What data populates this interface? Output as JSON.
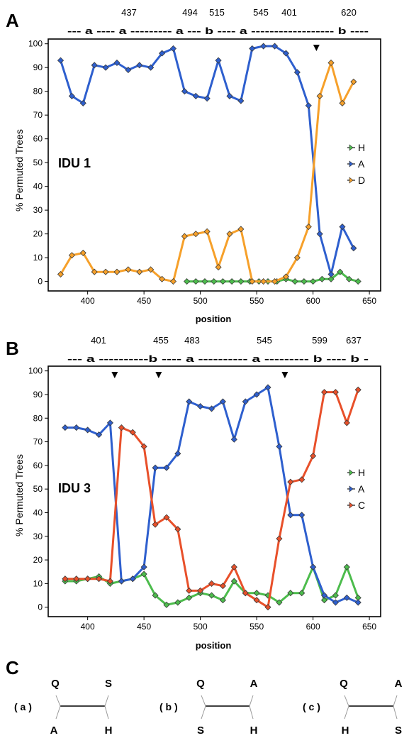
{
  "panels": [
    {
      "letter": "A",
      "breakpoint_labels": [
        "401",
        "437",
        "494",
        "515",
        "545",
        "620"
      ],
      "region_line": "--- a ---- a --------- a --- b ---- a ------------------ b ----",
      "ylabel": "% Permuted Trees",
      "xlabel": "position",
      "plot_label": "IDU 1",
      "arrowheads_x": [
        603
      ]
    },
    {
      "letter": "B",
      "breakpoint_labels": [
        "401",
        "455",
        "483",
        "545",
        "599",
        "637"
      ],
      "region_line": "--- a ----------b ---- a ---------- a --------- b ---- b -",
      "ylabel": "% Permuted Trees",
      "xlabel": "position",
      "plot_label": "IDU 3",
      "arrowheads_x": [
        424,
        463,
        575
      ]
    }
  ],
  "chart_data": [
    {
      "type": "line",
      "xlim": [
        365,
        660
      ],
      "ylim": [
        -4,
        102
      ],
      "x_ticks": [
        400,
        450,
        500,
        550,
        600,
        650
      ],
      "y_ticks": [
        0,
        10,
        20,
        30,
        40,
        50,
        60,
        70,
        80,
        90,
        100
      ],
      "xlabel": "position",
      "ylabel": "% Permuted Trees",
      "legend_position": "right",
      "series": [
        {
          "name": "H",
          "color": "#4cbc4c",
          "points": [
            [
              488,
              0
            ],
            [
              496,
              0
            ],
            [
              504,
              0
            ],
            [
              512,
              0
            ],
            [
              520,
              0
            ],
            [
              528,
              0
            ],
            [
              536,
              0
            ],
            [
              544,
              0
            ],
            [
              552,
              0
            ],
            [
              560,
              0
            ],
            [
              568,
              0
            ],
            [
              576,
              1
            ],
            [
              584,
              0
            ],
            [
              592,
              0
            ],
            [
              600,
              0
            ],
            [
              608,
              1
            ],
            [
              616,
              1
            ],
            [
              624,
              4
            ],
            [
              632,
              1
            ],
            [
              640,
              0
            ]
          ]
        },
        {
          "name": "A",
          "color": "#2e5fce",
          "points": [
            [
              376,
              93
            ],
            [
              386,
              78
            ],
            [
              396,
              75
            ],
            [
              406,
              91
            ],
            [
              416,
              90
            ],
            [
              426,
              92
            ],
            [
              436,
              89
            ],
            [
              446,
              91
            ],
            [
              456,
              90
            ],
            [
              466,
              96
            ],
            [
              476,
              98
            ],
            [
              486,
              80
            ],
            [
              496,
              78
            ],
            [
              506,
              77
            ],
            [
              516,
              93
            ],
            [
              526,
              78
            ],
            [
              536,
              76
            ],
            [
              546,
              98
            ],
            [
              556,
              99
            ],
            [
              566,
              99
            ],
            [
              576,
              96
            ],
            [
              586,
              88
            ],
            [
              596,
              74
            ],
            [
              606,
              20
            ],
            [
              616,
              3
            ],
            [
              626,
              23
            ],
            [
              636,
              14
            ]
          ]
        },
        {
          "name": "D",
          "color": "#f6a02a",
          "points": [
            [
              376,
              3
            ],
            [
              386,
              11
            ],
            [
              396,
              12
            ],
            [
              406,
              4
            ],
            [
              416,
              4
            ],
            [
              426,
              4
            ],
            [
              436,
              5
            ],
            [
              446,
              4
            ],
            [
              456,
              5
            ],
            [
              466,
              1
            ],
            [
              476,
              0
            ],
            [
              486,
              19
            ],
            [
              496,
              20
            ],
            [
              506,
              21
            ],
            [
              516,
              6
            ],
            [
              526,
              20
            ],
            [
              536,
              22
            ],
            [
              546,
              0
            ],
            [
              556,
              0
            ],
            [
              566,
              0
            ],
            [
              576,
              2
            ],
            [
              586,
              10
            ],
            [
              596,
              23
            ],
            [
              606,
              78
            ],
            [
              616,
              92
            ],
            [
              626,
              75
            ],
            [
              636,
              84
            ]
          ]
        }
      ]
    },
    {
      "type": "line",
      "xlim": [
        365,
        660
      ],
      "ylim": [
        -4,
        102
      ],
      "x_ticks": [
        400,
        450,
        500,
        550,
        600,
        650
      ],
      "y_ticks": [
        0,
        10,
        20,
        30,
        40,
        50,
        60,
        70,
        80,
        90,
        100
      ],
      "xlabel": "position",
      "ylabel": "% Permuted Trees",
      "legend_position": "right",
      "series": [
        {
          "name": "H",
          "color": "#4cbc4c",
          "points": [
            [
              380,
              11
            ],
            [
              390,
              11
            ],
            [
              400,
              12
            ],
            [
              410,
              13
            ],
            [
              420,
              10
            ],
            [
              430,
              11
            ],
            [
              440,
              12
            ],
            [
              450,
              14
            ],
            [
              460,
              5
            ],
            [
              470,
              1
            ],
            [
              480,
              2
            ],
            [
              490,
              4
            ],
            [
              500,
              6
            ],
            [
              510,
              5
            ],
            [
              520,
              3
            ],
            [
              530,
              11
            ],
            [
              540,
              6
            ],
            [
              550,
              6
            ],
            [
              560,
              5
            ],
            [
              570,
              2
            ],
            [
              580,
              6
            ],
            [
              590,
              6
            ],
            [
              600,
              17
            ],
            [
              610,
              3
            ],
            [
              620,
              5
            ],
            [
              630,
              17
            ],
            [
              640,
              4
            ]
          ]
        },
        {
          "name": "A",
          "color": "#2e5fce",
          "points": [
            [
              380,
              76
            ],
            [
              390,
              76
            ],
            [
              400,
              75
            ],
            [
              410,
              73
            ],
            [
              420,
              78
            ],
            [
              430,
              11
            ],
            [
              440,
              12
            ],
            [
              450,
              17
            ],
            [
              460,
              59
            ],
            [
              470,
              59
            ],
            [
              480,
              65
            ],
            [
              490,
              87
            ],
            [
              500,
              85
            ],
            [
              510,
              84
            ],
            [
              520,
              87
            ],
            [
              530,
              71
            ],
            [
              540,
              87
            ],
            [
              550,
              90
            ],
            [
              560,
              93
            ],
            [
              570,
              68
            ],
            [
              580,
              39
            ],
            [
              590,
              39
            ],
            [
              600,
              17
            ],
            [
              610,
              5
            ],
            [
              620,
              2
            ],
            [
              630,
              4
            ],
            [
              640,
              2
            ]
          ]
        },
        {
          "name": "C",
          "color": "#e8502a",
          "points": [
            [
              380,
              12
            ],
            [
              390,
              12
            ],
            [
              400,
              12
            ],
            [
              410,
              12
            ],
            [
              420,
              11
            ],
            [
              430,
              76
            ],
            [
              440,
              74
            ],
            [
              450,
              68
            ],
            [
              460,
              35
            ],
            [
              470,
              38
            ],
            [
              480,
              33
            ],
            [
              490,
              7
            ],
            [
              500,
              7
            ],
            [
              510,
              10
            ],
            [
              520,
              9
            ],
            [
              530,
              17
            ],
            [
              540,
              6
            ],
            [
              550,
              3
            ],
            [
              560,
              0
            ],
            [
              570,
              29
            ],
            [
              580,
              53
            ],
            [
              590,
              54
            ],
            [
              600,
              64
            ],
            [
              610,
              91
            ],
            [
              620,
              91
            ],
            [
              630,
              78
            ],
            [
              640,
              92
            ]
          ]
        }
      ]
    }
  ],
  "panel_c": {
    "letter": "C",
    "trees": [
      {
        "label": "( a )",
        "tl": "Q",
        "tr": "S",
        "bl": "A",
        "br": "H"
      },
      {
        "label": "( b )",
        "tl": "Q",
        "tr": "A",
        "bl": "S",
        "br": "H"
      },
      {
        "label": "( c )",
        "tl": "Q",
        "tr": "A",
        "bl": "H",
        "br": "S"
      }
    ]
  }
}
